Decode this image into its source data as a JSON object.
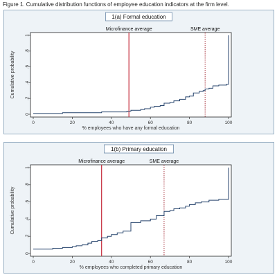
{
  "figure_title": "Figure 1. Cumulative distribution functions of employee education indicators at the firm level.",
  "colors": {
    "cdf": "#24426b",
    "microfinance": "#c42a3a",
    "sme": "#a0202c",
    "panel_bg": "#eef3f7"
  },
  "chart_data": [
    {
      "type": "line",
      "title": "1(a) Formal education",
      "xlabel": "% employees who have any formal education",
      "ylabel": "Cumulative probability",
      "xlim": [
        0,
        100
      ],
      "ylim": [
        0,
        1
      ],
      "x_ticks": [
        0,
        20,
        40,
        60,
        80,
        100
      ],
      "y_ticks": [
        0,
        0.2,
        0.4,
        0.6,
        0.8,
        1
      ],
      "y_tick_labels": [
        "0",
        ".2",
        ".4",
        ".6",
        ".8",
        "1"
      ],
      "grid": false,
      "series": [
        {
          "x": [
            0,
            5,
            10,
            15,
            20,
            25,
            30,
            35,
            40,
            45,
            48,
            50,
            55,
            57,
            60,
            62,
            65,
            67,
            70,
            72,
            75,
            78,
            80,
            82,
            85,
            87,
            88,
            90,
            92,
            95,
            99,
            100,
            100
          ],
          "y": [
            0.01,
            0.01,
            0.01,
            0.02,
            0.02,
            0.02,
            0.02,
            0.03,
            0.03,
            0.03,
            0.04,
            0.05,
            0.06,
            0.07,
            0.09,
            0.1,
            0.11,
            0.14,
            0.15,
            0.17,
            0.19,
            0.22,
            0.23,
            0.27,
            0.29,
            0.3,
            0.32,
            0.33,
            0.36,
            0.37,
            0.38,
            0.38,
            1.0
          ]
        }
      ],
      "annotations": [
        {
          "label": "Microfinance average",
          "x": 49,
          "style": "solid"
        },
        {
          "label": "SME average",
          "x": 88,
          "style": "dotted"
        }
      ]
    },
    {
      "type": "line",
      "title": "1(b) Primary education",
      "xlabel": "% employees who completed primary education",
      "ylabel": "Cumulative probability",
      "xlim": [
        0,
        100
      ],
      "ylim": [
        0,
        1
      ],
      "x_ticks": [
        0,
        20,
        40,
        60,
        80,
        100
      ],
      "y_ticks": [
        0,
        0.2,
        0.4,
        0.6,
        0.8,
        1
      ],
      "y_tick_labels": [
        "0",
        ".2",
        ".4",
        ".6",
        ".8",
        "1"
      ],
      "grid": false,
      "series": [
        {
          "x": [
            0,
            5,
            10,
            15,
            20,
            22,
            25,
            28,
            30,
            33,
            35,
            38,
            40,
            43,
            46,
            50,
            50,
            55,
            60,
            63,
            67,
            67,
            70,
            72,
            75,
            78,
            80,
            83,
            86,
            90,
            95,
            99,
            100,
            100
          ],
          "y": [
            0.05,
            0.05,
            0.06,
            0.07,
            0.08,
            0.09,
            0.1,
            0.12,
            0.14,
            0.15,
            0.18,
            0.2,
            0.22,
            0.24,
            0.26,
            0.28,
            0.36,
            0.38,
            0.4,
            0.44,
            0.46,
            0.49,
            0.5,
            0.52,
            0.53,
            0.55,
            0.57,
            0.59,
            0.6,
            0.62,
            0.63,
            0.63,
            0.63,
            1.0
          ]
        }
      ],
      "annotations": [
        {
          "label": "Microfinance average",
          "x": 35,
          "style": "solid"
        },
        {
          "label": "SME average",
          "x": 67,
          "style": "dotted"
        }
      ]
    }
  ]
}
